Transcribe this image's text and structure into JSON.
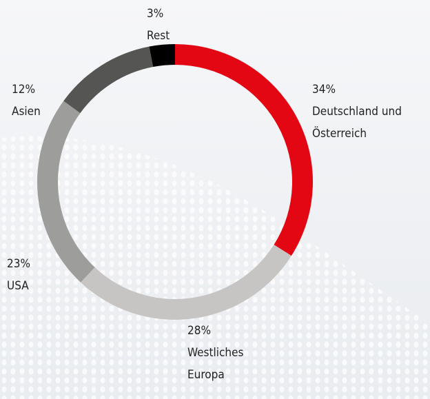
{
  "chart_data": {
    "type": "donut",
    "categories": [
      "Deutschland und Österreich",
      "Westliches Europa",
      "USA",
      "Asien",
      "Rest"
    ],
    "values": [
      34,
      28,
      23,
      12,
      3
    ],
    "value_labels": [
      "34%",
      "28%",
      "23%",
      "12%",
      "3%"
    ],
    "colors": [
      "#e30613",
      "#c6c5c3",
      "#9d9d9b",
      "#555554",
      "#000000"
    ]
  }
}
